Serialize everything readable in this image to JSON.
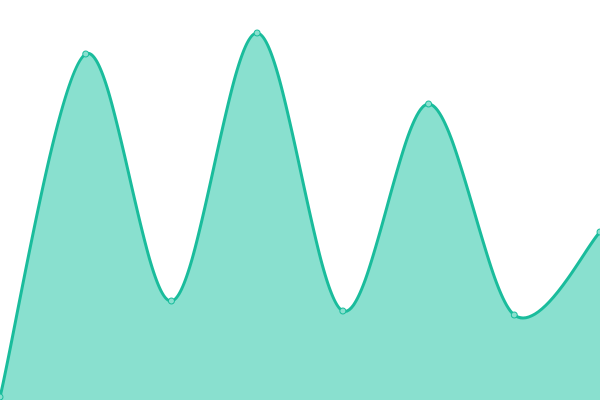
{
  "chart_data": {
    "type": "area",
    "x": [
      0,
      1,
      2,
      3,
      4,
      5,
      6,
      7
    ],
    "values": [
      3,
      346,
      99,
      367,
      89,
      296,
      85,
      168
    ],
    "ylim": [
      0,
      400
    ],
    "grid": false,
    "axes": false,
    "legend": "none",
    "smooth": true,
    "colors": {
      "line": "#1abc9c",
      "fill": "#89e0cf",
      "point": "#89e0cf"
    }
  }
}
